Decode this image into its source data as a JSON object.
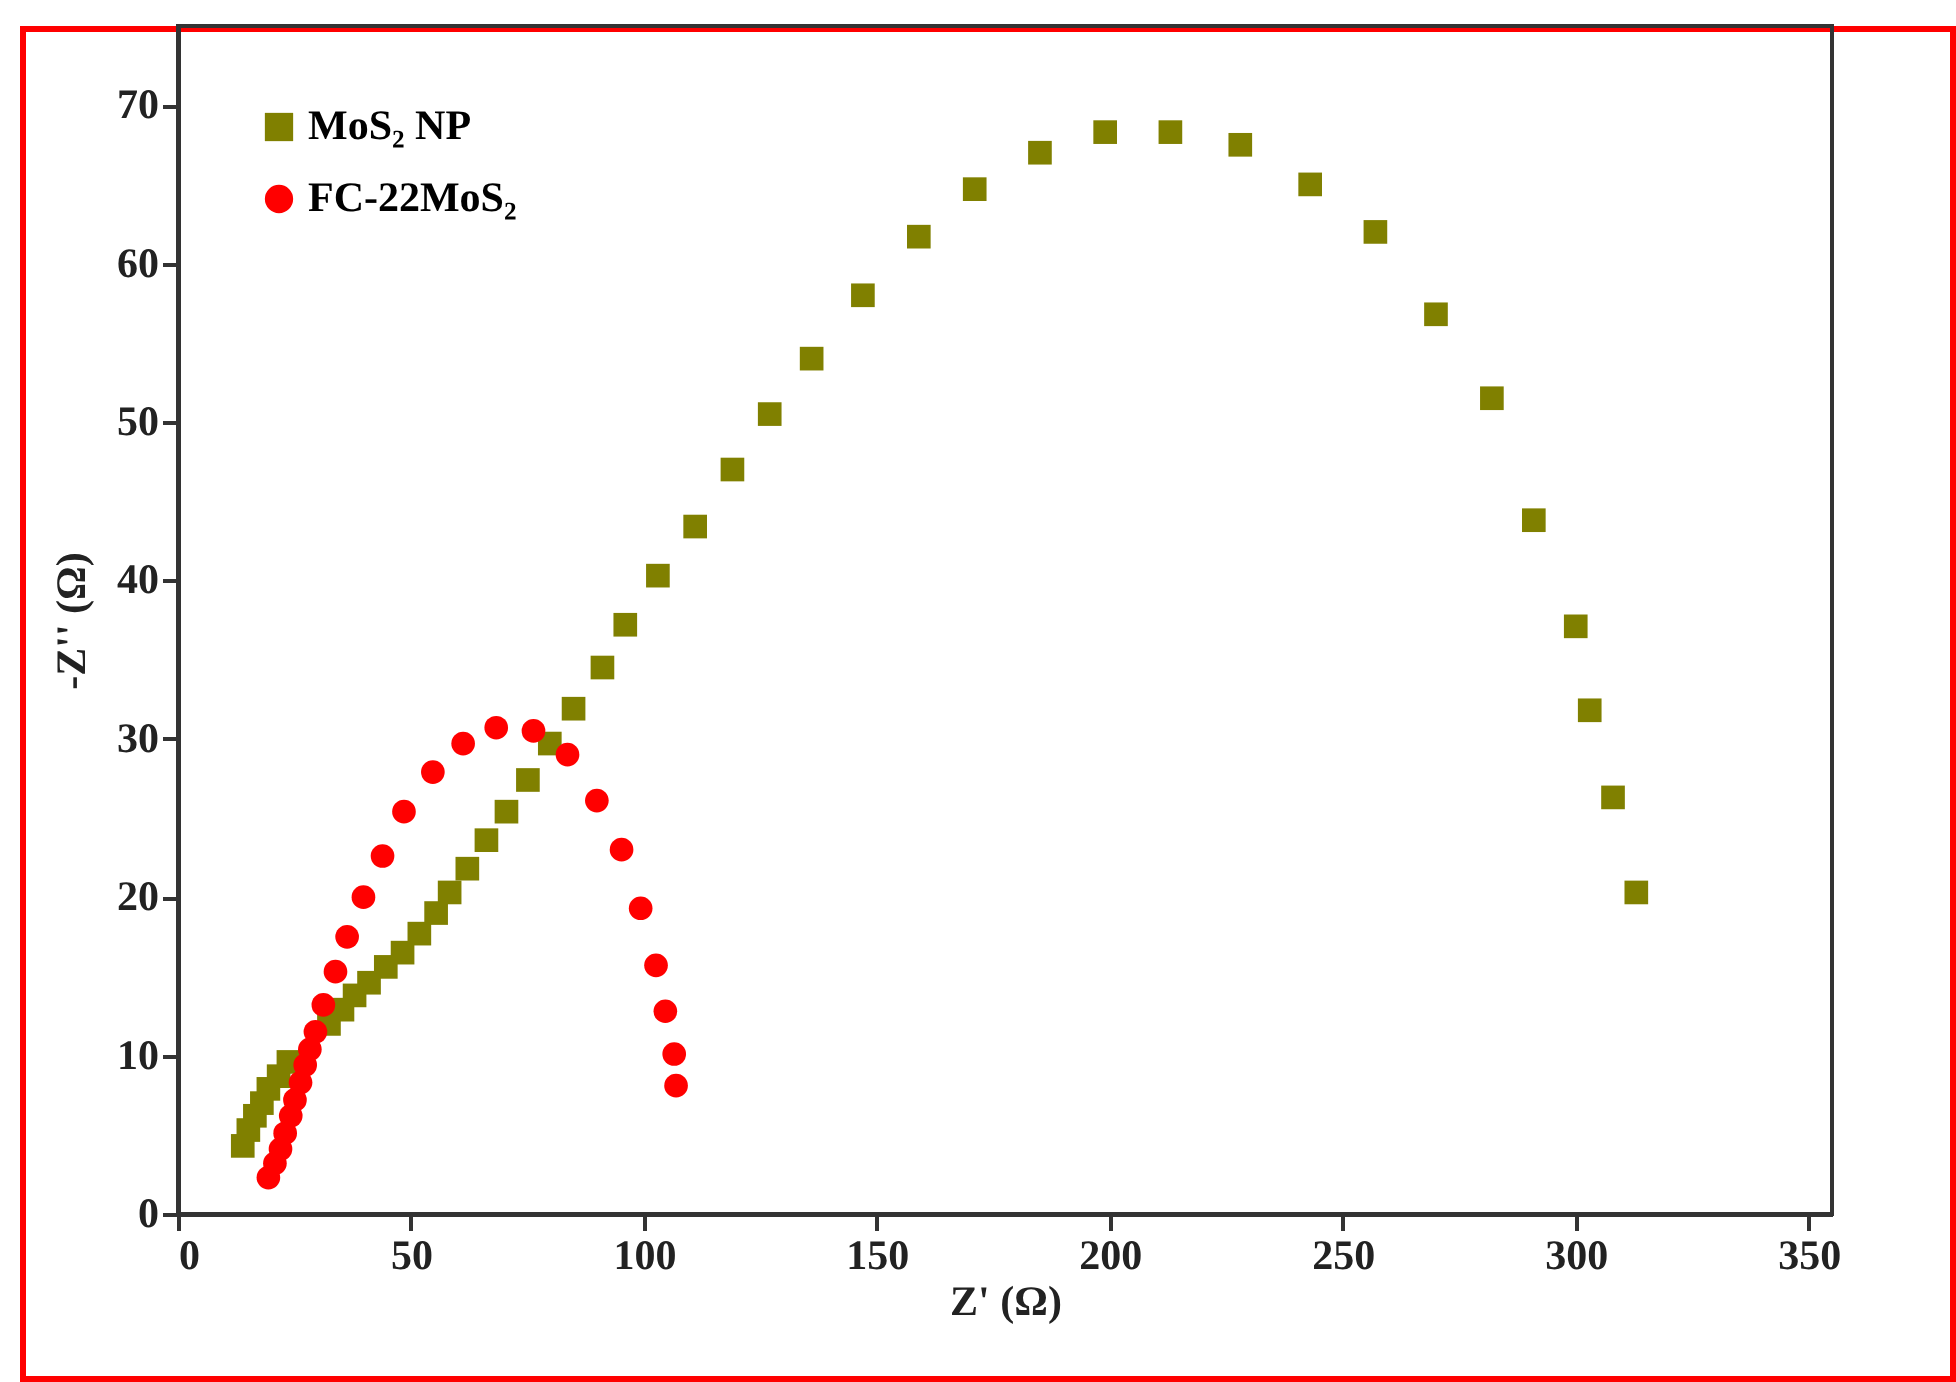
{
  "chart_data": {
    "type": "scatter",
    "xlabel": "Z' (Ω)",
    "ylabel": "-Z'' (Ω)",
    "xlim": [
      0,
      355
    ],
    "ylim": [
      0,
      75
    ],
    "xticks": [
      0,
      50,
      100,
      150,
      200,
      250,
      300,
      350
    ],
    "yticks": [
      0,
      10,
      20,
      30,
      40,
      50,
      60,
      70
    ],
    "grid": false,
    "legend": "top left",
    "series": [
      {
        "name": "MoS₂ NP",
        "color": "#808000",
        "marker": "square",
        "x": [
          13.9,
          15.1,
          16.5,
          18,
          19.4,
          21.6,
          23.7,
          32.4,
          35.3,
          37.9,
          41,
          44.6,
          48.2,
          51.8,
          55.4,
          58.3,
          62.1,
          66.2,
          70.5,
          75.1,
          79.8,
          84.9,
          91.1,
          96,
          103,
          111,
          119,
          127,
          136,
          147,
          159,
          171,
          185,
          199,
          213,
          228,
          243,
          257,
          270,
          282,
          291,
          300,
          303,
          308,
          313
        ],
        "values": [
          4.3,
          5.3,
          6.2,
          7,
          7.9,
          8.7,
          9.6,
          12,
          12.9,
          13.8,
          14.6,
          15.6,
          16.5,
          17.7,
          19,
          20.3,
          21.8,
          23.6,
          25.4,
          27.4,
          29.7,
          31.9,
          34.5,
          37.2,
          40.3,
          43.4,
          47,
          50.5,
          54,
          58,
          61.7,
          64.7,
          67,
          68.3,
          68.3,
          67.5,
          65,
          62,
          56.8,
          51.5,
          43.8,
          37.1,
          31.8,
          26.3,
          20.3
        ]
      },
      {
        "name": "FC-22MoS₂",
        "color": "#ff0000",
        "marker": "circle",
        "x": [
          19.4,
          20.8,
          22,
          23,
          24.2,
          25.1,
          26.3,
          27.3,
          28.3,
          29.5,
          31.2,
          33.8,
          36.3,
          39.8,
          43.9,
          48.5,
          54.7,
          61.2,
          68.3,
          76.3,
          83.6,
          89.9,
          95.2,
          99.3,
          102.6,
          104.6,
          106.5,
          106.9
        ],
        "values": [
          2.3,
          3.2,
          4.1,
          5.1,
          6.2,
          7.2,
          8.3,
          9.4,
          10.4,
          11.5,
          13.2,
          15.3,
          17.5,
          20,
          22.6,
          25.4,
          27.9,
          29.7,
          30.7,
          30.5,
          29,
          26.1,
          23,
          19.3,
          15.7,
          12.8,
          10.1,
          8.1
        ]
      }
    ]
  }
}
